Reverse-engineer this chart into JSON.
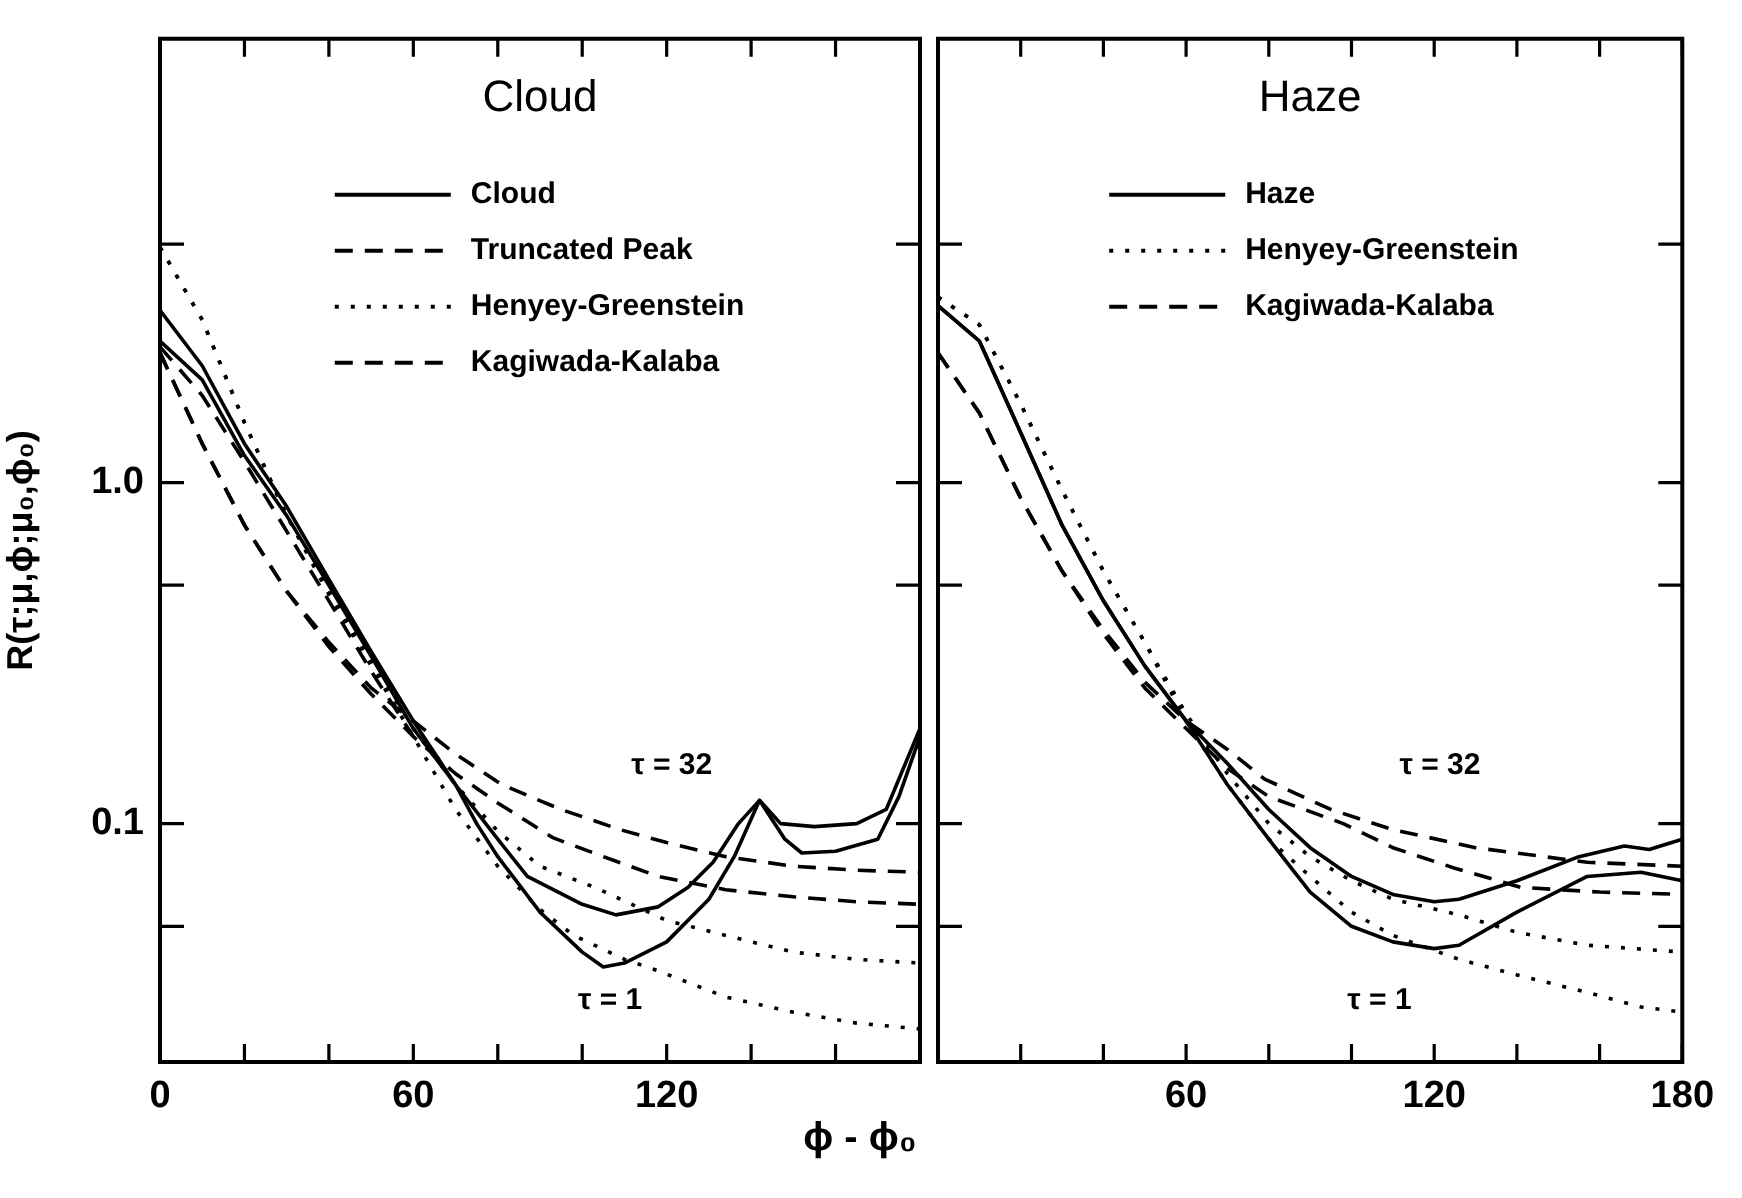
{
  "chart_data": [
    {
      "type": "line",
      "title": "Cloud",
      "xlabel": "ϕ - ϕ₀",
      "ylabel": "R(τ;μ,ϕ;μ₀,ϕ₀)",
      "xlim": [
        0,
        180
      ],
      "xticks": [
        0,
        {
          "value": 20,
          "label": null
        },
        {
          "value": 40,
          "label": null
        },
        60,
        {
          "value": 80,
          "label": null
        },
        {
          "value": 100,
          "label": null
        },
        120,
        {
          "value": 140,
          "label": null
        },
        {
          "value": 160,
          "label": null
        },
        {
          "value": 180,
          "label": null
        }
      ],
      "ylim": [
        0.02,
        20
      ],
      "yticks": [
        {
          "value": 0.05,
          "label": null
        },
        0.1,
        {
          "value": 0.5,
          "label": null
        },
        {
          "value": 1,
          "label": "1.0"
        },
        {
          "value": 5,
          "label": null
        }
      ],
      "log": "y",
      "grid": false,
      "legend": "top",
      "annotations": [
        "τ = 32",
        "τ = 1"
      ],
      "series": [
        {
          "name": "Cloud",
          "color": "#000000",
          "line_style": "solid",
          "x": [
            0,
            10,
            20,
            30,
            40,
            50,
            60,
            70,
            75,
            80,
            90,
            100,
            105,
            110,
            120,
            130,
            136,
            142,
            148,
            152,
            160,
            170,
            175,
            180
          ],
          "values": [
            2.6,
            2.0,
            1.2,
            0.8,
            0.5,
            0.31,
            0.19,
            0.13,
            0.1,
            0.08,
            0.055,
            0.042,
            0.038,
            0.039,
            0.045,
            0.06,
            0.08,
            0.117,
            0.09,
            0.082,
            0.083,
            0.09,
            0.12,
            0.18
          ]
        },
        {
          "color": "#000000",
          "line_style": "solid",
          "x": [
            0,
            10,
            20,
            30,
            40,
            50,
            60,
            70,
            80,
            87,
            100,
            108,
            118,
            125,
            131,
            137,
            142,
            147,
            155,
            165,
            172,
            180
          ],
          "values": [
            3.2,
            2.2,
            1.3,
            0.85,
            0.52,
            0.32,
            0.2,
            0.13,
            0.09,
            0.07,
            0.058,
            0.054,
            0.057,
            0.065,
            0.077,
            0.1,
            0.117,
            0.1,
            0.098,
            0.1,
            0.11,
            0.19
          ]
        },
        {
          "name": "Truncated Peak",
          "color": "#000000",
          "line_style": "dashed",
          "x": [
            0,
            10,
            20,
            30,
            40,
            50,
            60
          ],
          "values": [
            2.5,
            1.8,
            1.15,
            0.72,
            0.45,
            0.28,
            0.18
          ]
        },
        {
          "name": "Henyey-Greenstein",
          "color": "#000000",
          "line_style": "dotted",
          "x": [
            0,
            10,
            20,
            30,
            40,
            50,
            60,
            70,
            80,
            90,
            103,
            120,
            134,
            150,
            165,
            180
          ],
          "values": [
            4.9,
            3.0,
            1.5,
            0.8,
            0.48,
            0.3,
            0.19,
            0.13,
            0.095,
            0.075,
            0.065,
            0.052,
            0.047,
            0.042,
            0.04,
            0.039
          ]
        },
        {
          "color": "#000000",
          "line_style": "dotted",
          "x": [
            0,
            10,
            20,
            30,
            40,
            50,
            60,
            70,
            80,
            90,
            98,
            110,
            118,
            134,
            150,
            165,
            180
          ],
          "values": [
            4.9,
            3.0,
            1.5,
            0.8,
            0.47,
            0.29,
            0.18,
            0.11,
            0.075,
            0.056,
            0.047,
            0.04,
            0.037,
            0.031,
            0.028,
            0.026,
            0.025
          ]
        },
        {
          "name": "Kagiwada-Kalaba",
          "color": "#000000",
          "line_style": "dashed",
          "x": [
            0,
            10,
            20,
            30,
            40,
            50,
            60,
            70,
            81,
            95,
            109,
            120,
            134,
            150,
            165,
            180
          ],
          "values": [
            2.4,
            1.3,
            0.75,
            0.48,
            0.34,
            0.25,
            0.2,
            0.16,
            0.13,
            0.11,
            0.096,
            0.088,
            0.08,
            0.075,
            0.073,
            0.072
          ]
        },
        {
          "color": "#000000",
          "line_style": "dashed",
          "x": [
            0,
            10,
            20,
            30,
            40,
            50,
            60,
            70,
            80,
            93,
            105,
            118,
            134,
            150,
            165,
            180
          ],
          "values": [
            2.4,
            1.3,
            0.75,
            0.48,
            0.33,
            0.24,
            0.18,
            0.14,
            0.115,
            0.091,
            0.08,
            0.07,
            0.064,
            0.061,
            0.059,
            0.058
          ]
        }
      ]
    },
    {
      "type": "line",
      "title": "Haze",
      "xlim": [
        0,
        180
      ],
      "xticks": [
        {
          "value": 0,
          "label": null
        },
        {
          "value": 20,
          "label": null
        },
        {
          "value": 40,
          "label": null
        },
        60,
        {
          "value": 80,
          "label": null
        },
        {
          "value": 100,
          "label": null
        },
        120,
        {
          "value": 140,
          "label": null
        },
        {
          "value": 160,
          "label": null
        },
        180
      ],
      "ylim": [
        0.02,
        20
      ],
      "yticks": [
        {
          "value": 0.05,
          "label": null
        },
        {
          "value": 0.1,
          "label": null
        },
        {
          "value": 0.5,
          "label": null
        },
        {
          "value": 1,
          "label": null
        },
        {
          "value": 5,
          "label": null
        }
      ],
      "log": "y",
      "grid": false,
      "legend": "top",
      "tick_labels": "x",
      "annotations": [
        "τ = 32",
        "τ = 1"
      ],
      "series": [
        {
          "name": "Haze",
          "color": "#000000",
          "line_style": "solid",
          "x": [
            0,
            10,
            20,
            30,
            40,
            50,
            60,
            70,
            80,
            90,
            100,
            110,
            120,
            126,
            140,
            157,
            170,
            180
          ],
          "values": [
            3.3,
            2.6,
            1.4,
            0.75,
            0.45,
            0.29,
            0.2,
            0.13,
            0.09,
            0.063,
            0.05,
            0.045,
            0.043,
            0.044,
            0.055,
            0.07,
            0.072,
            0.068
          ]
        },
        {
          "color": "#000000",
          "line_style": "solid",
          "x": [
            0,
            10,
            20,
            30,
            40,
            50,
            60,
            70,
            80,
            90,
            100,
            110,
            120,
            126,
            140,
            155,
            166,
            172,
            180
          ],
          "values": [
            3.3,
            2.6,
            1.4,
            0.75,
            0.45,
            0.29,
            0.2,
            0.15,
            0.11,
            0.085,
            0.07,
            0.062,
            0.059,
            0.06,
            0.068,
            0.08,
            0.086,
            0.084,
            0.09
          ]
        },
        {
          "name": "Henyey-Greenstein",
          "color": "#000000",
          "line_style": "dotted",
          "x": [
            0,
            10,
            20,
            30,
            40,
            50,
            60,
            70,
            80,
            90,
            100,
            110,
            126,
            140,
            157,
            180
          ],
          "values": [
            3.5,
            2.9,
            1.7,
            0.95,
            0.55,
            0.34,
            0.21,
            0.14,
            0.1,
            0.08,
            0.068,
            0.06,
            0.054,
            0.048,
            0.044,
            0.042
          ]
        },
        {
          "color": "#000000",
          "line_style": "dotted",
          "x": [
            0,
            10,
            20,
            30,
            40,
            50,
            60,
            70,
            80,
            90,
            100,
            110,
            126,
            140,
            157,
            170,
            180
          ],
          "values": [
            3.5,
            2.9,
            1.7,
            0.95,
            0.55,
            0.34,
            0.2,
            0.13,
            0.09,
            0.07,
            0.055,
            0.047,
            0.04,
            0.036,
            0.032,
            0.029,
            0.028
          ]
        },
        {
          "name": "Kagiwada-Kalaba",
          "color": "#000000",
          "line_style": "dashed",
          "x": [
            0,
            10,
            20,
            30,
            40,
            50,
            60,
            70,
            79,
            95,
            110,
            130,
            157,
            180
          ],
          "values": [
            2.4,
            1.6,
            0.9,
            0.55,
            0.37,
            0.26,
            0.2,
            0.165,
            0.135,
            0.11,
            0.096,
            0.085,
            0.077,
            0.075
          ]
        },
        {
          "color": "#000000",
          "line_style": "dashed",
          "x": [
            0,
            10,
            20,
            30,
            40,
            50,
            60,
            70,
            80,
            98,
            110,
            125,
            141,
            160,
            180
          ],
          "values": [
            2.4,
            1.6,
            0.9,
            0.55,
            0.36,
            0.25,
            0.19,
            0.145,
            0.12,
            0.1,
            0.085,
            0.074,
            0.065,
            0.063,
            0.062
          ]
        }
      ]
    }
  ]
}
